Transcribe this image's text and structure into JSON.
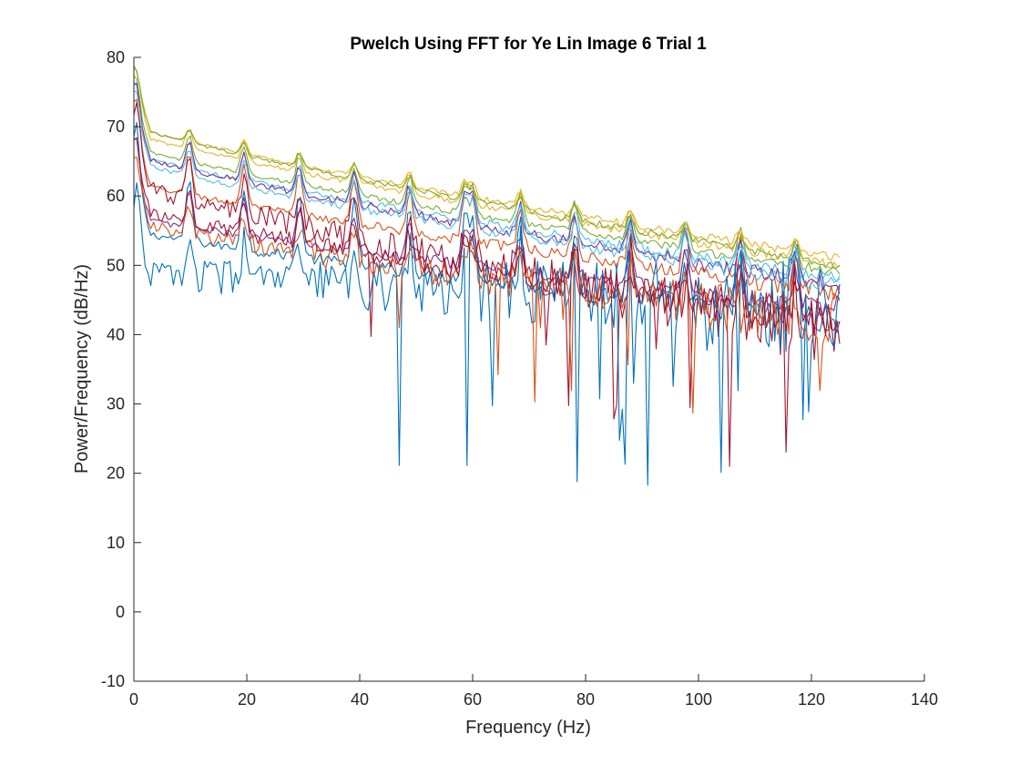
{
  "chart_data": {
    "type": "line",
    "title": "Pwelch Using FFT for Ye Lin Image 6 Trial 1",
    "xlabel": "Frequency (Hz)",
    "ylabel": "Power/Frequency (dB/Hz)",
    "xlim": [
      0,
      140
    ],
    "ylim": [
      -10,
      80
    ],
    "xticks": [
      "0",
      "20",
      "40",
      "60",
      "80",
      "100",
      "120",
      "140"
    ],
    "yticks": [
      "-10",
      "0",
      "10",
      "20",
      "30",
      "40",
      "50",
      "60",
      "70",
      "80"
    ],
    "grid": false,
    "legend": "none",
    "x_range": [
      0,
      125
    ],
    "harmonic_peaks_hz": [
      0.5,
      9.8,
      19.5,
      29.3,
      39,
      48.8,
      58.6,
      60,
      68.4,
      78.1,
      87.9,
      97.7,
      107.4,
      117.2
    ],
    "series": [
      {
        "color": "#0072BD",
        "start": 55,
        "end": 42,
        "peak_height": 9,
        "jitter": 1.2
      },
      {
        "color": "#D95319",
        "start": 62,
        "end": 46,
        "peak_height": 6,
        "jitter": 0.8
      },
      {
        "color": "#EDB120",
        "start": 69,
        "end": 50,
        "peak_height": 3,
        "jitter": 0.5
      },
      {
        "color": "#7E2F8E",
        "start": 57,
        "end": 44,
        "peak_height": 5,
        "jitter": 1.0
      },
      {
        "color": "#77AC30",
        "start": 67,
        "end": 49,
        "peak_height": 4,
        "jitter": 0.5
      },
      {
        "color": "#4DBEEE",
        "start": 66,
        "end": 48,
        "peak_height": 4,
        "jitter": 0.6
      },
      {
        "color": "#A2142F",
        "start": 62,
        "end": 40,
        "peak_height": 5,
        "jitter": 3.0
      },
      {
        "color": "#0072BD",
        "start": 49,
        "end": 44,
        "peak_height": 5,
        "jitter": 4.5
      },
      {
        "color": "#D95319",
        "start": 56,
        "end": 42,
        "peak_height": 4,
        "jitter": 2.5
      },
      {
        "color": "#EDB120",
        "start": 70,
        "end": 51,
        "peak_height": 2,
        "jitter": 0.4
      },
      {
        "color": "#7E2F8E",
        "start": 66,
        "end": 47,
        "peak_height": 4,
        "jitter": 0.8
      },
      {
        "color": "#77AC30",
        "start": 70,
        "end": 50,
        "peak_height": 2,
        "jitter": 0.4
      },
      {
        "color": "#4DBEEE",
        "start": 65,
        "end": 47,
        "peak_height": 4,
        "jitter": 0.7
      },
      {
        "color": "#A2142F",
        "start": 58,
        "end": 42,
        "peak_height": 4,
        "jitter": 2.0
      }
    ]
  }
}
